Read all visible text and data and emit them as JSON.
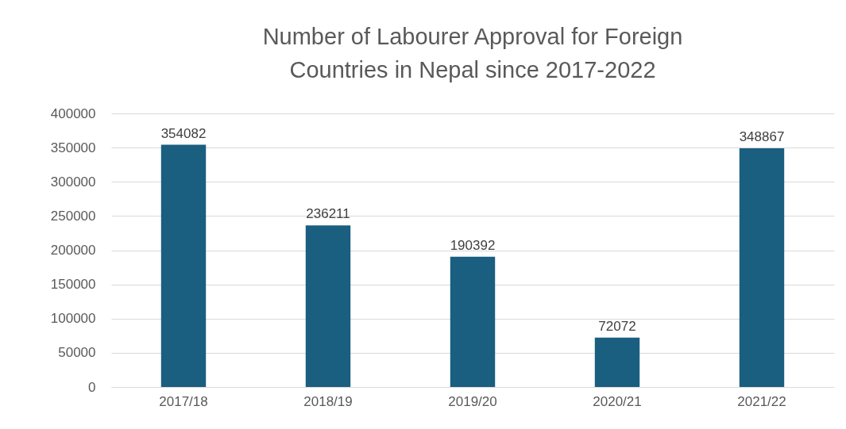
{
  "chart_data": {
    "type": "bar",
    "title": "Number of Labourer Approval for Foreign Countries in Nepal since 2017-2022",
    "categories": [
      "2017/18",
      "2018/19",
      "2019/20",
      "2020/21",
      "2021/22"
    ],
    "values": [
      354082,
      236211,
      190392,
      72072,
      348867
    ],
    "color": "#1a5e80",
    "ylim": [
      0,
      400000
    ],
    "yticks": [
      0,
      50000,
      100000,
      150000,
      200000,
      250000,
      300000,
      350000,
      400000
    ],
    "grid": "y",
    "data_labels": true
  }
}
